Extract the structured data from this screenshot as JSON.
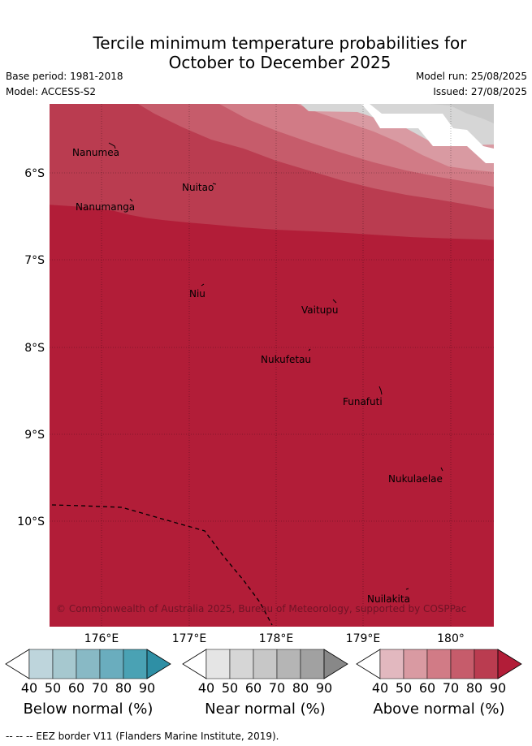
{
  "title_line1": "Tercile minimum temperature probabilities for",
  "title_line2": "October to December 2025",
  "base_period": "Base period: 1981-2018",
  "model": "Model: ACCESS-S2",
  "model_run": "Model run: 25/08/2025",
  "issued": "Issued: 27/08/2025",
  "copyright": "© Commonwealth of Australia 2025, Bureau of Meteorology, supported by COSPPac",
  "longitude_labels": [
    "176°E",
    "177°E",
    "178°E",
    "179°E",
    "180°"
  ],
  "latitude_labels": [
    "6°S",
    "7°S",
    "8°S",
    "9°S",
    "10°S"
  ],
  "places": [
    "Nanumea",
    "Nuitao",
    "Nanumanga",
    "Niu",
    "Vaitupu",
    "Nukufetau",
    "Funafuti",
    "Nukulaelae",
    "Nuilakita"
  ],
  "colorbars": [
    {
      "label": "Below normal (%)",
      "ticks": [
        "40",
        "50",
        "60",
        "70",
        "80",
        "90"
      ],
      "colors": [
        "#ffffff",
        "#bed5dc",
        "#a6c8cf",
        "#88b9c5",
        "#6aadbe",
        "#4aa2b4",
        "#2e8fa5"
      ]
    },
    {
      "label": "Near normal (%)",
      "ticks": [
        "40",
        "50",
        "60",
        "70",
        "80",
        "90"
      ],
      "colors": [
        "#ffffff",
        "#e5e5e5",
        "#d6d6d6",
        "#c7c7c7",
        "#b5b5b5",
        "#a1a1a1",
        "#888888"
      ]
    },
    {
      "label": "Above normal (%)",
      "ticks": [
        "40",
        "50",
        "60",
        "70",
        "80",
        "90"
      ],
      "colors": [
        "#ffffff",
        "#e2b8bf",
        "#d99aa2",
        "#d17b86",
        "#c65c6b",
        "#ba3c50",
        "#b21d38"
      ]
    }
  ],
  "footer": "--  --  -- EEZ border V11 (Flanders Marine Institute, 2019)."
}
